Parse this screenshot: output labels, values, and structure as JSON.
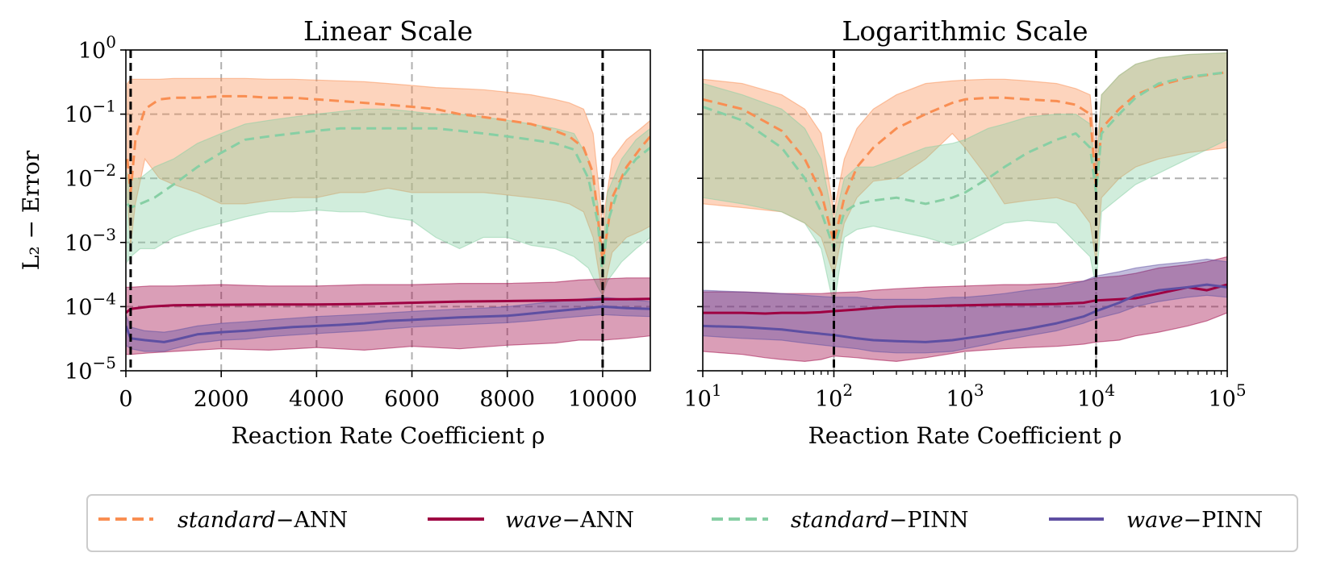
{
  "chart_data": [
    {
      "type": "line",
      "title": "Linear Scale",
      "xlabel": "Reaction Rate Coefficient ρ",
      "ylabel": "L₂ − Error",
      "xscale": "linear",
      "yscale": "log",
      "xlim": [
        0,
        11000
      ],
      "ylim": [
        1e-05,
        1
      ],
      "xticks": [
        0,
        2000,
        4000,
        6000,
        8000,
        10000
      ],
      "xticklabels": [
        "0",
        "2000",
        "4000",
        "6000",
        "8000",
        "10000"
      ],
      "yticks": [
        1e-05,
        0.0001,
        0.001,
        0.01,
        0.1,
        1
      ],
      "yticklabels": [
        [
          "10",
          "−5"
        ],
        [
          "10",
          "−4"
        ],
        [
          "10",
          "−3"
        ],
        [
          "10",
          "−2"
        ],
        [
          "10",
          "−1"
        ],
        [
          "10",
          "0"
        ]
      ],
      "grid": true,
      "reference_lines_x": [
        100,
        10000
      ],
      "series": [
        {
          "name": "standard−ANN",
          "x": [
            30,
            100,
            200,
            400,
            700,
            1000,
            1500,
            2000,
            2500,
            3000,
            3500,
            4000,
            4500,
            5000,
            5500,
            6000,
            6500,
            7000,
            7500,
            8000,
            8500,
            9000,
            9300,
            9600,
            9800,
            10000,
            10200,
            10500,
            10800,
            11000
          ],
          "y": [
            0.02,
            0.006,
            0.04,
            0.12,
            0.17,
            0.18,
            0.18,
            0.19,
            0.19,
            0.18,
            0.18,
            0.17,
            0.16,
            0.15,
            0.14,
            0.13,
            0.12,
            0.1,
            0.09,
            0.08,
            0.07,
            0.055,
            0.045,
            0.03,
            0.012,
            0.0005,
            0.005,
            0.015,
            0.03,
            0.045
          ],
          "lower": [
            0.005,
            0.0009,
            0.004,
            0.02,
            0.01,
            0.008,
            0.006,
            0.004,
            0.004,
            0.0045,
            0.005,
            0.005,
            0.006,
            0.006,
            0.007,
            0.006,
            0.006,
            0.006,
            0.006,
            0.0055,
            0.005,
            0.0045,
            0.004,
            0.003,
            0.0012,
            0.00015,
            0.0007,
            0.0012,
            0.0015,
            0.0018
          ],
          "upper": [
            0.3,
            0.35,
            0.35,
            0.35,
            0.35,
            0.36,
            0.36,
            0.36,
            0.36,
            0.35,
            0.35,
            0.34,
            0.33,
            0.32,
            0.3,
            0.28,
            0.26,
            0.25,
            0.24,
            0.22,
            0.2,
            0.17,
            0.15,
            0.12,
            0.05,
            0.002,
            0.02,
            0.04,
            0.06,
            0.08
          ]
        },
        {
          "name": "wave−ANN",
          "x": [
            0,
            100,
            500,
            1000,
            2000,
            3000,
            4000,
            5000,
            6000,
            7000,
            8000,
            9000,
            9500,
            10000,
            10500,
            11000
          ],
          "y": [
            8e-05,
            9.2e-05,
            0.0001,
            0.000105,
            0.000107,
            0.000108,
            0.000108,
            0.00011,
            0.000115,
            0.00012,
            0.000122,
            0.000125,
            0.000127,
            0.00013,
            0.00013,
            0.000132
          ],
          "lower": [
            1.8e-05,
            1.8e-05,
            1.9e-05,
            2e-05,
            2.2e-05,
            2.1e-05,
            2.3e-05,
            2.1e-05,
            2.4e-05,
            2.2e-05,
            2.5e-05,
            2.7e-05,
            3e-05,
            3e-05,
            3.2e-05,
            3.5e-05
          ],
          "upper": [
            0.0002,
            0.0002,
            0.00021,
            0.00021,
            0.00022,
            0.00021,
            0.00021,
            0.00022,
            0.00022,
            0.00023,
            0.00023,
            0.00024,
            0.00026,
            0.00027,
            0.00028,
            0.00028
          ]
        },
        {
          "name": "standard−PINN",
          "x": [
            30,
            100,
            300,
            600,
            1000,
            1500,
            2000,
            2500,
            3000,
            3500,
            4000,
            4500,
            5000,
            5500,
            6000,
            6500,
            7000,
            7500,
            8000,
            8500,
            9000,
            9400,
            9700,
            9900,
            10000,
            10100,
            10400,
            10700,
            11000
          ],
          "y": [
            0.004,
            0.0035,
            0.004,
            0.005,
            0.008,
            0.015,
            0.025,
            0.04,
            0.045,
            0.05,
            0.055,
            0.06,
            0.06,
            0.06,
            0.06,
            0.06,
            0.055,
            0.05,
            0.045,
            0.04,
            0.035,
            0.028,
            0.01,
            0.002,
            0.0003,
            0.002,
            0.01,
            0.02,
            0.03
          ],
          "lower": [
            0.0005,
            0.0006,
            0.0008,
            0.0008,
            0.0012,
            0.0016,
            0.002,
            0.0025,
            0.003,
            0.003,
            0.0032,
            0.003,
            0.003,
            0.0025,
            0.0022,
            0.0012,
            0.0008,
            0.0012,
            0.0012,
            0.0009,
            0.0008,
            0.0006,
            0.0004,
            0.0002,
            0.00015,
            0.00025,
            0.0005,
            0.0008,
            0.0012
          ],
          "upper": [
            0.012,
            0.01,
            0.01,
            0.015,
            0.02,
            0.035,
            0.05,
            0.07,
            0.08,
            0.09,
            0.1,
            0.11,
            0.12,
            0.12,
            0.11,
            0.1,
            0.1,
            0.09,
            0.08,
            0.07,
            0.06,
            0.05,
            0.02,
            0.004,
            0.0006,
            0.006,
            0.02,
            0.04,
            0.06
          ]
        },
        {
          "name": "wave−PINN",
          "x": [
            0,
            100,
            400,
            800,
            1000,
            1500,
            2000,
            2500,
            3000,
            3500,
            4000,
            4500,
            5000,
            5500,
            6000,
            6500,
            7000,
            7500,
            8000,
            8500,
            9000,
            9500,
            10000,
            10500,
            11000
          ],
          "y": [
            5e-05,
            3.2e-05,
            3e-05,
            2.8e-05,
            3e-05,
            3.7e-05,
            4e-05,
            4.2e-05,
            4.5e-05,
            4.8e-05,
            5e-05,
            5.2e-05,
            5.5e-05,
            6e-05,
            6.2e-05,
            6.5e-05,
            6.8e-05,
            7e-05,
            7.2e-05,
            7.8e-05,
            8.5e-05,
            9.2e-05,
            0.0001,
            9.5e-05,
            9.2e-05
          ],
          "lower": [
            2.5e-05,
            2.2e-05,
            2e-05,
            2e-05,
            2.2e-05,
            2.7e-05,
            3e-05,
            3.1e-05,
            3.4e-05,
            3.6e-05,
            3.8e-05,
            4e-05,
            4.2e-05,
            4.5e-05,
            4.8e-05,
            5e-05,
            5.2e-05,
            5.4e-05,
            5.6e-05,
            6e-05,
            6.5e-05,
            7e-05,
            7.5e-05,
            7.2e-05,
            7e-05
          ],
          "upper": [
            7.5e-05,
            4.8e-05,
            4.2e-05,
            4e-05,
            4.2e-05,
            5e-05,
            5.5e-05,
            5.8e-05,
            6.2e-05,
            6.6e-05,
            7e-05,
            7.3e-05,
            7.6e-05,
            8e-05,
            8.4e-05,
            8.8e-05,
            9.2e-05,
            9.5e-05,
            0.0001,
            0.00011,
            0.00012,
            0.00013,
            0.00014,
            0.00013,
            0.00012
          ]
        }
      ]
    },
    {
      "type": "line",
      "title": "Logarithmic Scale",
      "xlabel": "Reaction Rate Coefficient ρ",
      "ylabel": "",
      "xscale": "log",
      "yscale": "log",
      "xlim": [
        10,
        100000
      ],
      "ylim": [
        1e-05,
        1
      ],
      "xticks": [
        10,
        100,
        1000,
        10000,
        100000
      ],
      "xticklabels": [
        [
          "10",
          "1"
        ],
        [
          "10",
          "2"
        ],
        [
          "10",
          "3"
        ],
        [
          "10",
          "4"
        ],
        [
          "10",
          "5"
        ]
      ],
      "yticks": [
        1e-05,
        0.0001,
        0.001,
        0.01,
        0.1,
        1
      ],
      "grid": true,
      "reference_lines_x": [
        100,
        10000
      ],
      "series": [
        {
          "name": "standard−ANN",
          "x": [
            10,
            20,
            40,
            60,
            80,
            100,
            120,
            150,
            200,
            300,
            500,
            800,
            1000,
            1500,
            2000,
            3000,
            5000,
            7000,
            9000,
            10000,
            11000,
            15000,
            20000,
            30000,
            50000,
            100000
          ],
          "y": [
            0.17,
            0.12,
            0.055,
            0.02,
            0.006,
            0.001,
            0.005,
            0.015,
            0.03,
            0.06,
            0.1,
            0.15,
            0.17,
            0.18,
            0.18,
            0.17,
            0.16,
            0.14,
            0.1,
            0.007,
            0.06,
            0.12,
            0.2,
            0.28,
            0.37,
            0.45
          ],
          "lower": [
            0.004,
            0.0035,
            0.003,
            0.002,
            0.0012,
            0.0003,
            0.002,
            0.005,
            0.009,
            0.01,
            0.02,
            0.05,
            0.03,
            0.01,
            0.004,
            0.0045,
            0.005,
            0.004,
            0.002,
            0.0005,
            0.005,
            0.01,
            0.015,
            0.02,
            0.025,
            0.03
          ],
          "upper": [
            0.35,
            0.3,
            0.2,
            0.12,
            0.05,
            0.003,
            0.02,
            0.06,
            0.12,
            0.2,
            0.3,
            0.33,
            0.34,
            0.35,
            0.35,
            0.33,
            0.3,
            0.25,
            0.2,
            0.02,
            0.2,
            0.4,
            0.6,
            0.75,
            0.85,
            0.9
          ]
        },
        {
          "name": "wave−ANN",
          "x": [
            10,
            20,
            30,
            40,
            60,
            80,
            100,
            150,
            200,
            300,
            500,
            1000,
            2000,
            3000,
            5000,
            8000,
            10000,
            15000,
            20000,
            30000,
            50000,
            70000,
            100000
          ],
          "y": [
            8e-05,
            8e-05,
            7.8e-05,
            8e-05,
            8e-05,
            8.2e-05,
            8.5e-05,
            9e-05,
            9.5e-05,
            0.0001,
            0.000102,
            0.000105,
            0.000108,
            0.000108,
            0.00011,
            0.000115,
            0.000125,
            0.00013,
            0.000135,
            0.00016,
            0.0002,
            0.00018,
            0.00022
          ],
          "lower": [
            2e-05,
            1.8e-05,
            1.6e-05,
            1.5e-05,
            1.4e-05,
            1.5e-05,
            1.7e-05,
            1.6e-05,
            1.5e-05,
            1.4e-05,
            1.6e-05,
            2e-05,
            2.2e-05,
            2.3e-05,
            2.4e-05,
            2.6e-05,
            2.8e-05,
            3e-05,
            3.5e-05,
            4e-05,
            5e-05,
            6e-05,
            8e-05
          ],
          "upper": [
            0.00017,
            0.00017,
            0.000165,
            0.00016,
            0.00016,
            0.00016,
            0.000165,
            0.00017,
            0.00018,
            0.00019,
            0.0002,
            0.00021,
            0.00022,
            0.00022,
            0.00023,
            0.00025,
            0.00028,
            0.0003,
            0.00033,
            0.0004,
            0.00045,
            0.0005,
            0.0006
          ]
        },
        {
          "name": "standard−PINN",
          "x": [
            10,
            20,
            40,
            60,
            80,
            100,
            120,
            150,
            200,
            300,
            500,
            800,
            1000,
            1500,
            2000,
            3000,
            5000,
            7000,
            9000,
            10000,
            11000,
            15000,
            20000,
            30000,
            50000,
            100000
          ],
          "y": [
            0.13,
            0.08,
            0.03,
            0.01,
            0.003,
            0.0008,
            0.003,
            0.004,
            0.0045,
            0.005,
            0.004,
            0.005,
            0.006,
            0.01,
            0.015,
            0.025,
            0.04,
            0.05,
            0.03,
            0.006,
            0.05,
            0.1,
            0.18,
            0.3,
            0.38,
            0.45
          ],
          "lower": [
            0.005,
            0.004,
            0.003,
            0.002,
            0.0008,
            0.0001,
            0.0012,
            0.0016,
            0.0018,
            0.0015,
            0.0012,
            0.0009,
            0.001,
            0.0015,
            0.002,
            0.0022,
            0.002,
            0.001,
            0.0006,
            0.0002,
            0.003,
            0.005,
            0.008,
            0.012,
            0.02,
            0.04
          ],
          "upper": [
            0.3,
            0.2,
            0.12,
            0.06,
            0.02,
            0.002,
            0.01,
            0.015,
            0.015,
            0.02,
            0.03,
            0.035,
            0.04,
            0.06,
            0.07,
            0.09,
            0.1,
            0.1,
            0.07,
            0.01,
            0.2,
            0.4,
            0.6,
            0.75,
            0.85,
            0.9
          ]
        },
        {
          "name": "wave−PINN",
          "x": [
            10,
            20,
            40,
            60,
            100,
            150,
            200,
            300,
            500,
            800,
            1000,
            1500,
            2000,
            3000,
            5000,
            8000,
            10000,
            15000,
            20000,
            30000,
            50000,
            70000,
            100000
          ],
          "y": [
            5e-05,
            4.8e-05,
            4.4e-05,
            4e-05,
            3.6e-05,
            3.2e-05,
            3e-05,
            2.9e-05,
            2.8e-05,
            3e-05,
            3.2e-05,
            3.6e-05,
            4e-05,
            4.5e-05,
            5.5e-05,
            7e-05,
            8.5e-05,
            0.000115,
            0.00015,
            0.00018,
            0.0002,
            0.00022,
            0.0002
          ],
          "lower": [
            3.5e-05,
            3.2e-05,
            3e-05,
            2.7e-05,
            2.4e-05,
            2.2e-05,
            2e-05,
            1.9e-05,
            1.9e-05,
            2e-05,
            2.2e-05,
            2.6e-05,
            3e-05,
            3.5e-05,
            4.2e-05,
            5.5e-05,
            6.5e-05,
            8e-05,
            0.0001,
            0.00012,
            0.00014,
            0.00015,
            0.00014
          ],
          "upper": [
            0.00018,
            0.00017,
            0.00016,
            0.00015,
            0.00014,
            0.00014,
            0.00013,
            0.00013,
            0.00013,
            0.00014,
            0.00014,
            0.00015,
            0.00016,
            0.00018,
            0.0002,
            0.00025,
            0.0003,
            0.00035,
            0.0004,
            0.00045,
            0.0005,
            0.00055,
            0.0005
          ]
        }
      ]
    }
  ],
  "legend": {
    "placement": "bottom",
    "entries": [
      {
        "series": "standard−ANN",
        "label_italic": "standard",
        "label_rest": "−ANN",
        "color": "#f98e52",
        "dash": true
      },
      {
        "series": "wave−ANN",
        "label_italic": "wave",
        "label_rest": "−ANN",
        "color": "#9e0142",
        "dash": false
      },
      {
        "series": "standard−PINN",
        "label_italic": "standard",
        "label_rest": "−PINN",
        "color": "#87cfa4",
        "dash": true
      },
      {
        "series": "wave−PINN",
        "label_italic": "wave",
        "label_rest": "−PINN",
        "color": "#5e4fa2",
        "dash": false
      }
    ]
  },
  "colors": {
    "standard−ANN": "#f98e52",
    "wave−ANN": "#9e0142",
    "standard−PINN": "#87cfa4",
    "wave−PINN": "#5e4fa2"
  }
}
